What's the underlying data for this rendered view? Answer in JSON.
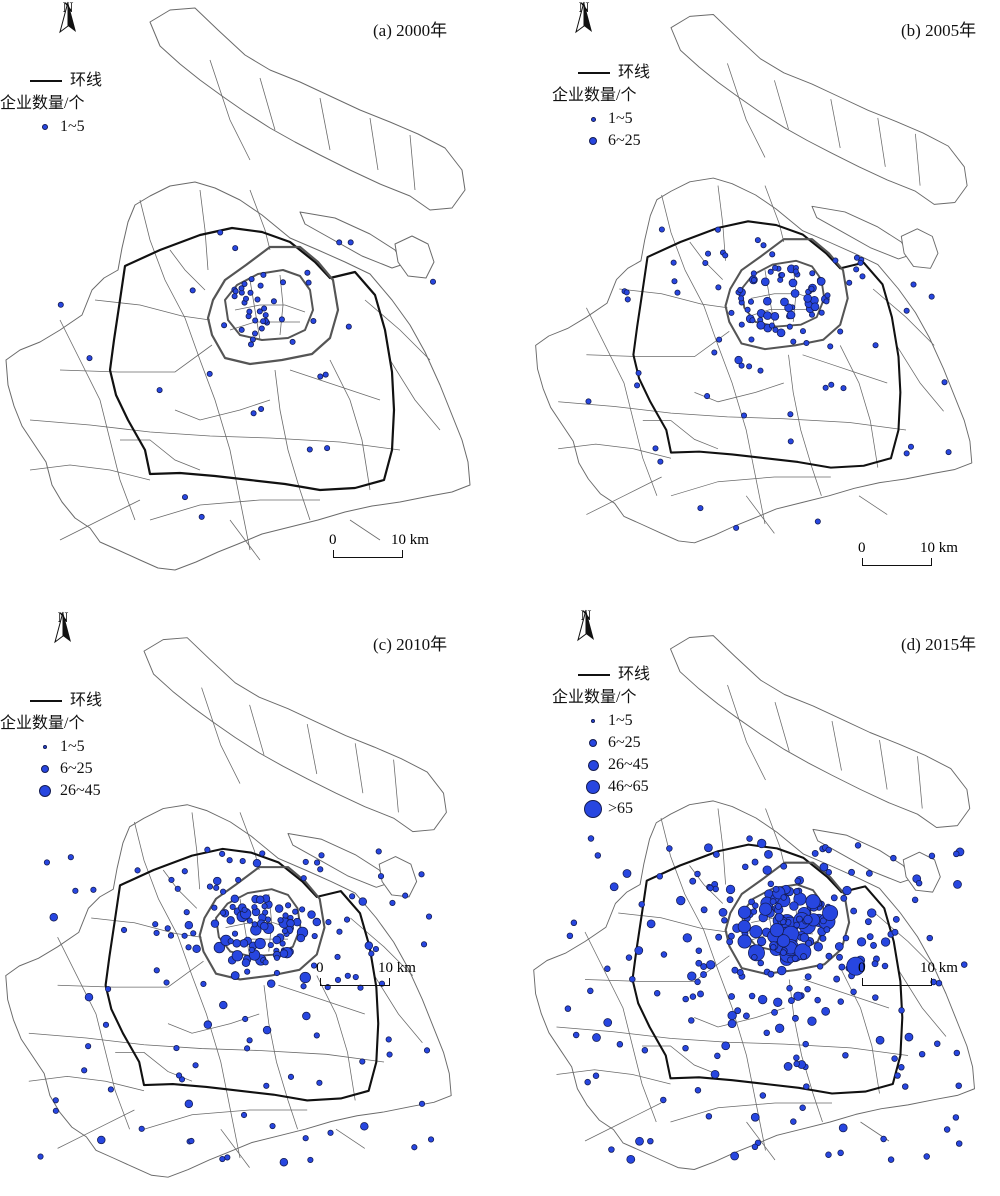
{
  "colors": {
    "symbol_fill": "#2746e0",
    "symbol_stroke": "#141c52",
    "boundary": "#6a6a6a",
    "ring_road": "#111111"
  },
  "north_label": "N",
  "scale_bar": {
    "start": "0",
    "end": "10 km"
  },
  "legend_common": {
    "ring_road": "环线",
    "count_heading": "企业数量/个"
  },
  "panels": [
    {
      "id": "a",
      "title": "(a) 2000年",
      "classes": [
        "1~5"
      ]
    },
    {
      "id": "b",
      "title": "(b) 2005年",
      "classes": [
        "1~5",
        "6~25"
      ]
    },
    {
      "id": "c",
      "title": "(c) 2010年",
      "classes": [
        "1~5",
        "6~25",
        "26~45"
      ]
    },
    {
      "id": "d",
      "title": "(d) 2015年",
      "classes": [
        "1~5",
        "6~25",
        "26~45",
        "46~65",
        ">65"
      ]
    }
  ]
}
